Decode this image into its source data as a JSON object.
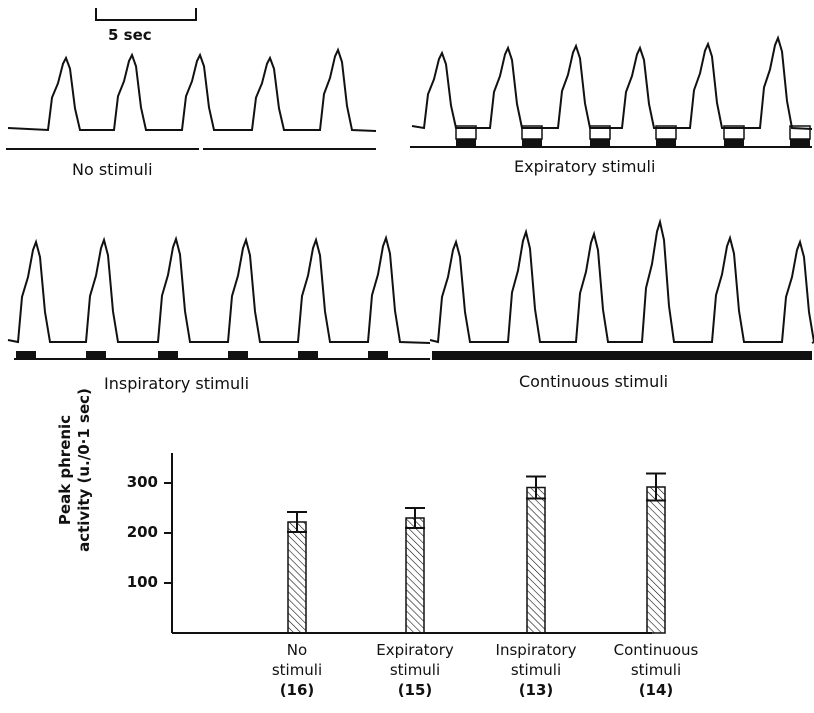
{
  "scale_bar": {
    "label": "5 sec"
  },
  "trace_labels": {
    "no_stimuli": "No stimuli",
    "expiratory": "Expiratory stimuli",
    "inspiratory": "Inspiratory stimuli",
    "continuous": "Continuous stimuli"
  },
  "chart_data": {
    "type": "bar",
    "ylabel_line1": "Peak phrenic",
    "ylabel_line2": "activity (u./0·1 sec)",
    "yticks": [
      100,
      200,
      300
    ],
    "ylim": [
      0,
      360
    ],
    "categories": [
      {
        "line1": "No",
        "line2": "stimuli",
        "n": "(16)"
      },
      {
        "line1": "Expiratory",
        "line2": "stimuli",
        "n": "(15)"
      },
      {
        "line1": "Inspiratory",
        "line2": "stimuli",
        "n": "(13)"
      },
      {
        "line1": "Continuous",
        "line2": "stimuli",
        "n": "(14)"
      }
    ],
    "values": [
      222,
      230,
      291,
      292
    ],
    "errors": [
      20,
      20,
      22,
      27
    ],
    "bar_pattern": "diagonal-hatch",
    "grid": false
  }
}
